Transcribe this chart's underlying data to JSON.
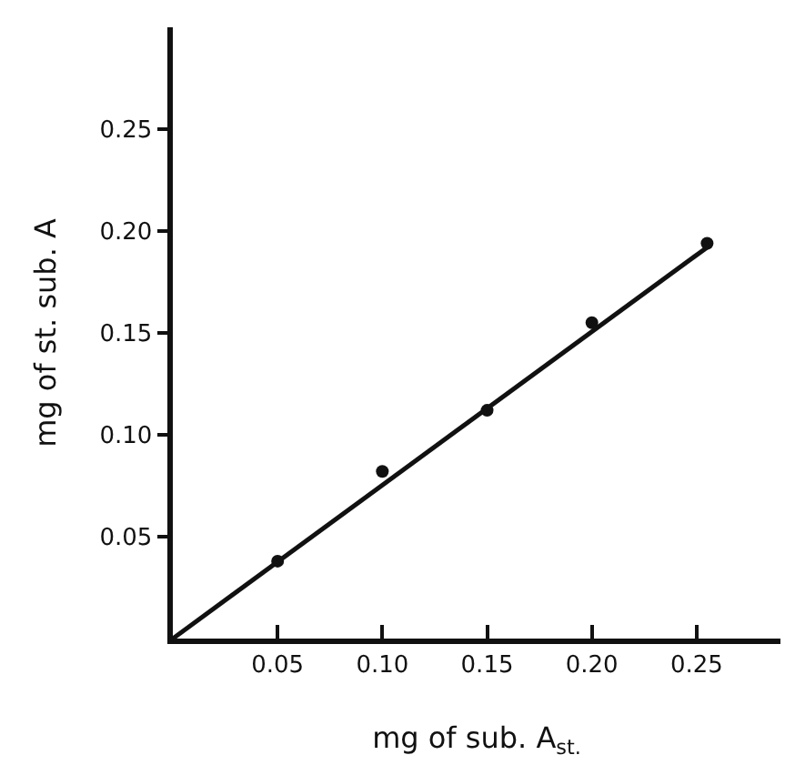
{
  "chart_data": {
    "type": "scatter",
    "xlabel": "mg of sub. A$_{st.}$",
    "ylabel": "mg of st. sub. A",
    "xlim": [
      0,
      0.29
    ],
    "ylim": [
      0,
      0.3
    ],
    "xticks": [
      0.05,
      {
        "value": 0.1,
        "label": "0.10"
      },
      0.15,
      {
        "value": 0.2,
        "label": "0.20"
      },
      0.25
    ],
    "yticks": [
      0.05,
      {
        "value": 0.1,
        "label": "0.10"
      },
      0.15,
      {
        "value": 0.2,
        "label": "0.20"
      },
      0.25
    ],
    "series": [
      {
        "marker": "circle",
        "color": "#111111",
        "x": [
          0.05,
          0.1,
          0.15,
          0.2,
          0.255
        ],
        "values": [
          0.038,
          0.082,
          0.112,
          0.155,
          0.194
        ]
      },
      {
        "type": "line",
        "color": "#111111",
        "x": [
          0,
          0.255
        ],
        "values": [
          0,
          0.192
        ]
      }
    ]
  }
}
